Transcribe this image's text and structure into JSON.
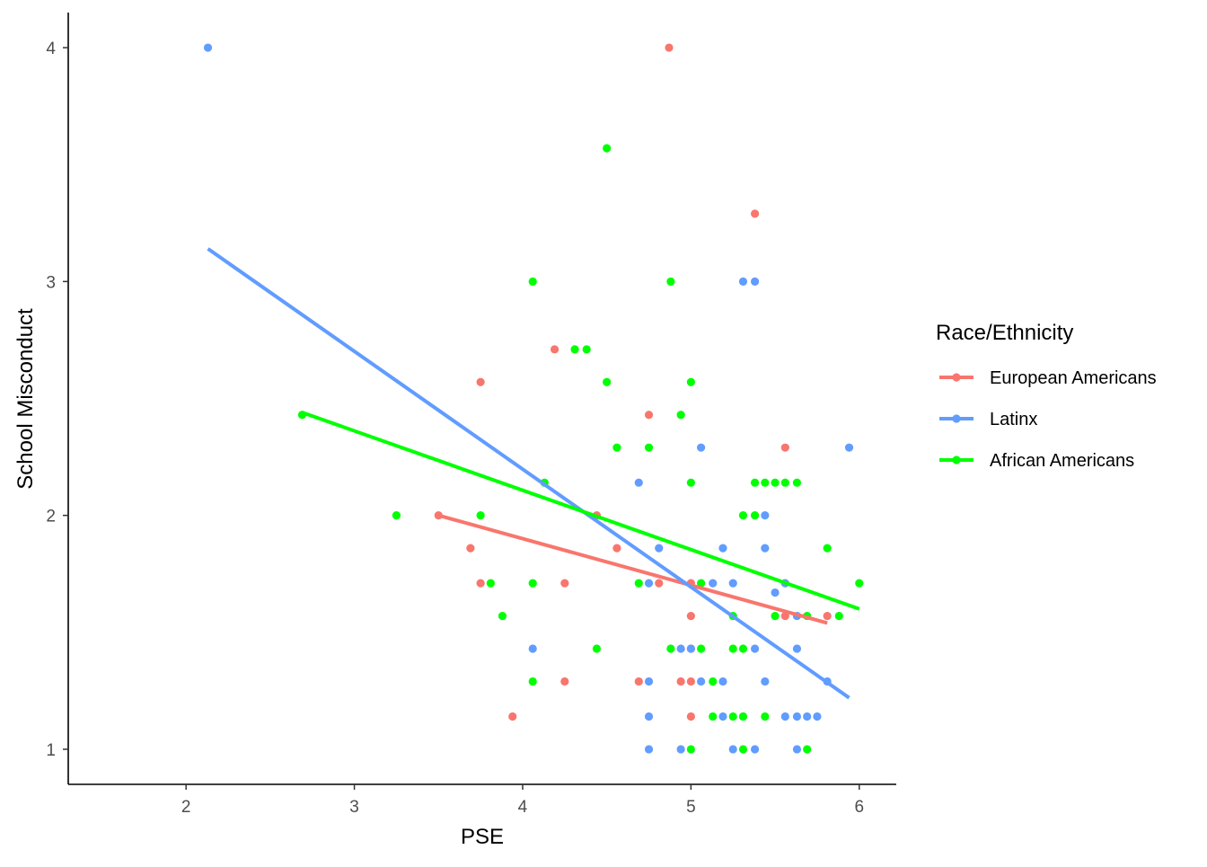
{
  "chart_data": {
    "type": "scatter",
    "title": "",
    "xlabel": "PSE",
    "ylabel": "School Misconduct",
    "xlim": [
      1.3,
      6.22
    ],
    "ylim": [
      0.85,
      4.15
    ],
    "xticks": [
      2,
      3,
      4,
      5,
      6
    ],
    "yticks": [
      1,
      2,
      3,
      4
    ],
    "grid": false,
    "legend": {
      "title": "Race/Ethnicity",
      "position": "right"
    },
    "series": [
      {
        "name": "European Americans",
        "color": "#f8766d",
        "points": [
          [
            4.87,
            4.0
          ],
          [
            5.38,
            3.29
          ],
          [
            4.19,
            2.71
          ],
          [
            3.75,
            2.57
          ],
          [
            4.75,
            2.43
          ],
          [
            5.56,
            2.29
          ],
          [
            3.5,
            2.0
          ],
          [
            4.44,
            2.0
          ],
          [
            3.69,
            1.86
          ],
          [
            4.56,
            1.86
          ],
          [
            3.75,
            1.71
          ],
          [
            4.25,
            1.71
          ],
          [
            4.81,
            1.71
          ],
          [
            5.0,
            1.71
          ],
          [
            5.56,
            1.57
          ],
          [
            5.0,
            1.57
          ],
          [
            5.0,
            1.43
          ],
          [
            4.69,
            1.29
          ],
          [
            4.25,
            1.29
          ],
          [
            4.94,
            1.29
          ],
          [
            5.0,
            1.29
          ],
          [
            3.94,
            1.14
          ],
          [
            5.0,
            1.14
          ],
          [
            5.81,
            1.57
          ]
        ],
        "trend": {
          "x": [
            3.5,
            5.81
          ],
          "y": [
            2.0,
            1.54
          ]
        }
      },
      {
        "name": "Latinx",
        "color": "#619cff",
        "points": [
          [
            2.13,
            4.0
          ],
          [
            5.31,
            3.0
          ],
          [
            5.38,
            3.0
          ],
          [
            5.06,
            2.29
          ],
          [
            5.94,
            2.29
          ],
          [
            4.69,
            2.14
          ],
          [
            5.44,
            2.0
          ],
          [
            4.81,
            1.86
          ],
          [
            5.19,
            1.86
          ],
          [
            5.44,
            1.86
          ],
          [
            4.75,
            1.71
          ],
          [
            5.13,
            1.71
          ],
          [
            5.25,
            1.71
          ],
          [
            5.56,
            1.71
          ],
          [
            5.5,
            1.67
          ],
          [
            5.63,
            1.57
          ],
          [
            4.06,
            1.43
          ],
          [
            4.94,
            1.43
          ],
          [
            5.0,
            1.43
          ],
          [
            5.38,
            1.43
          ],
          [
            5.63,
            1.43
          ],
          [
            4.75,
            1.29
          ],
          [
            5.06,
            1.29
          ],
          [
            5.19,
            1.29
          ],
          [
            5.44,
            1.29
          ],
          [
            5.81,
            1.29
          ],
          [
            4.75,
            1.14
          ],
          [
            5.19,
            1.14
          ],
          [
            5.31,
            1.14
          ],
          [
            5.56,
            1.14
          ],
          [
            5.63,
            1.14
          ],
          [
            5.69,
            1.14
          ],
          [
            5.75,
            1.14
          ],
          [
            4.75,
            1.0
          ],
          [
            4.94,
            1.0
          ],
          [
            5.25,
            1.0
          ],
          [
            5.38,
            1.0
          ],
          [
            5.63,
            1.0
          ]
        ],
        "trend": {
          "x": [
            2.13,
            5.94
          ],
          "y": [
            3.14,
            1.22
          ]
        }
      },
      {
        "name": "African Americans",
        "color": "#00ff00",
        "points": [
          [
            4.5,
            3.57
          ],
          [
            4.06,
            3.0
          ],
          [
            4.88,
            3.0
          ],
          [
            4.31,
            2.71
          ],
          [
            4.38,
            2.71
          ],
          [
            4.5,
            2.57
          ],
          [
            5.0,
            2.57
          ],
          [
            4.94,
            2.43
          ],
          [
            2.69,
            2.43
          ],
          [
            4.56,
            2.29
          ],
          [
            4.75,
            2.29
          ],
          [
            4.13,
            2.14
          ],
          [
            5.0,
            2.14
          ],
          [
            5.38,
            2.14
          ],
          [
            5.44,
            2.14
          ],
          [
            5.5,
            2.14
          ],
          [
            5.56,
            2.14
          ],
          [
            5.63,
            2.14
          ],
          [
            3.25,
            2.0
          ],
          [
            3.75,
            2.0
          ],
          [
            5.31,
            2.0
          ],
          [
            5.38,
            2.0
          ],
          [
            5.81,
            1.86
          ],
          [
            3.81,
            1.71
          ],
          [
            4.06,
            1.71
          ],
          [
            4.69,
            1.71
          ],
          [
            5.06,
            1.71
          ],
          [
            6.0,
            1.71
          ],
          [
            3.88,
            1.57
          ],
          [
            5.25,
            1.57
          ],
          [
            5.5,
            1.57
          ],
          [
            5.69,
            1.57
          ],
          [
            5.88,
            1.57
          ],
          [
            4.44,
            1.43
          ],
          [
            4.88,
            1.43
          ],
          [
            5.06,
            1.43
          ],
          [
            5.25,
            1.43
          ],
          [
            5.31,
            1.43
          ],
          [
            4.06,
            1.29
          ],
          [
            5.13,
            1.29
          ],
          [
            5.13,
            1.14
          ],
          [
            5.25,
            1.14
          ],
          [
            5.31,
            1.14
          ],
          [
            5.44,
            1.14
          ],
          [
            5.0,
            1.0
          ],
          [
            5.31,
            1.0
          ],
          [
            5.69,
            1.0
          ]
        ],
        "trend": {
          "x": [
            2.69,
            6.0
          ],
          "y": [
            2.44,
            1.6
          ]
        }
      }
    ]
  }
}
